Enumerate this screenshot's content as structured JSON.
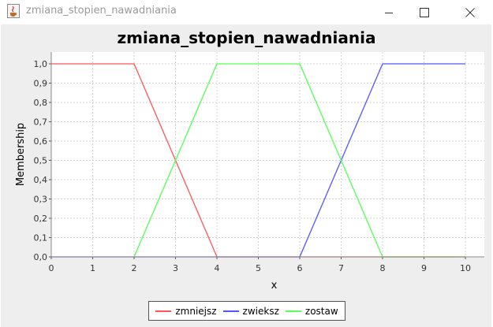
{
  "window": {
    "title": "zmiana_stopien_nawadniania",
    "icon": "java-cup-icon",
    "buttons": [
      "minimize",
      "maximize",
      "close"
    ]
  },
  "chart_data": {
    "type": "line",
    "title": "zmiana_stopien_nawadniania",
    "xlabel": "x",
    "ylabel": "Membership",
    "xlim": [
      0,
      10
    ],
    "ylim": [
      0,
      1
    ],
    "x_ticks": [
      "0",
      "1",
      "2",
      "3",
      "4",
      "5",
      "6",
      "7",
      "8",
      "9",
      "10"
    ],
    "y_ticks": [
      "0,0",
      "0,1",
      "0,2",
      "0,3",
      "0,4",
      "0,5",
      "0,6",
      "0,7",
      "0,8",
      "0,9",
      "1,0"
    ],
    "grid": true,
    "legend_position": "bottom",
    "series": [
      {
        "name": "zmniejsz",
        "color": "#ff5555",
        "points": [
          [
            0,
            1
          ],
          [
            2,
            1
          ],
          [
            4,
            0
          ],
          [
            10,
            0
          ]
        ]
      },
      {
        "name": "zwieksz",
        "color": "#5555ff",
        "points": [
          [
            0,
            0
          ],
          [
            6,
            0
          ],
          [
            8,
            1
          ],
          [
            10,
            1
          ]
        ]
      },
      {
        "name": "zostaw",
        "color": "#55ff55",
        "points": [
          [
            2,
            0
          ],
          [
            4,
            1
          ],
          [
            6,
            1
          ],
          [
            8,
            0
          ],
          [
            10,
            0
          ]
        ]
      }
    ]
  }
}
